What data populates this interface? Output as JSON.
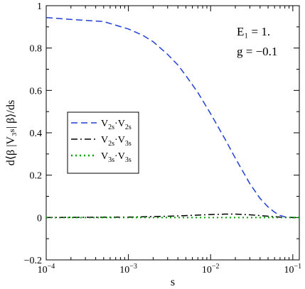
{
  "chart_data": {
    "type": "line",
    "xlabel": "s",
    "ylabel": "d⟨β |V₃ₛ| β⟩/ds",
    "x_scale": "log",
    "xlim": [
      0.0001,
      0.12
    ],
    "ylim": [
      -0.2,
      1.0
    ],
    "x_ticks": [
      {
        "value": 0.0001,
        "base": "10",
        "exp": "−4"
      },
      {
        "value": 0.001,
        "base": "10",
        "exp": "−3"
      },
      {
        "value": 0.01,
        "base": "10",
        "exp": "−2"
      },
      {
        "value": 0.1,
        "base": "10",
        "exp": "−1"
      }
    ],
    "y_ticks": [
      {
        "value": -0.2,
        "label": "−0.2"
      },
      {
        "value": 0,
        "label": "0"
      },
      {
        "value": 0.2,
        "label": "0.2"
      },
      {
        "value": 0.4,
        "label": "0.4"
      },
      {
        "value": 0.6,
        "label": "0.6"
      },
      {
        "value": 0.8,
        "label": "0.8"
      },
      {
        "value": 1.0,
        "label": "1"
      }
    ],
    "annotations": [
      {
        "lines": [
          "E₁ = 1.",
          "g = −0.1"
        ],
        "position": "top-right"
      }
    ],
    "legend": {
      "position": "center-left"
    },
    "series": [
      {
        "name": "V2s·V2s",
        "label_parts": {
          "a": "V",
          "a_sub": "2s",
          "b": "V",
          "b_sub": "2s"
        },
        "color": "#1f3fd6",
        "dash": "dashed",
        "x": [
          0.0001,
          0.0002,
          0.0005,
          0.001,
          0.0015,
          0.002,
          0.003,
          0.004,
          0.005,
          0.007,
          0.01,
          0.015,
          0.02,
          0.03,
          0.04,
          0.05,
          0.06,
          0.07,
          0.08,
          0.1,
          0.12
        ],
        "y": [
          0.944,
          0.935,
          0.925,
          0.89,
          0.86,
          0.83,
          0.77,
          0.72,
          0.67,
          0.59,
          0.49,
          0.37,
          0.28,
          0.16,
          0.09,
          0.05,
          0.025,
          0.01,
          0.003,
          0.0,
          0.0
        ]
      },
      {
        "name": "V2s·V3s",
        "label_parts": {
          "a": "V",
          "a_sub": "2s",
          "b": "V",
          "b_sub": "3s"
        },
        "color": "#000000",
        "dash": "dashdot",
        "x": [
          0.0001,
          0.001,
          0.003,
          0.005,
          0.01,
          0.015,
          0.02,
          0.03,
          0.05,
          0.07,
          0.1,
          0.12
        ],
        "y": [
          0.0,
          0.002,
          0.006,
          0.009,
          0.014,
          0.016,
          0.016,
          0.013,
          0.006,
          0.002,
          0.0,
          0.0
        ]
      },
      {
        "name": "V3s·V3s",
        "label_parts": {
          "a": "V",
          "a_sub": "3s",
          "b": "V",
          "b_sub": "3s"
        },
        "color": "#00a000",
        "dash": "dotted",
        "x": [
          0.0001,
          0.001,
          0.01,
          0.05,
          0.1,
          0.12
        ],
        "y": [
          0.0,
          0.0,
          0.0,
          0.0,
          0.0,
          0.0
        ]
      }
    ]
  }
}
